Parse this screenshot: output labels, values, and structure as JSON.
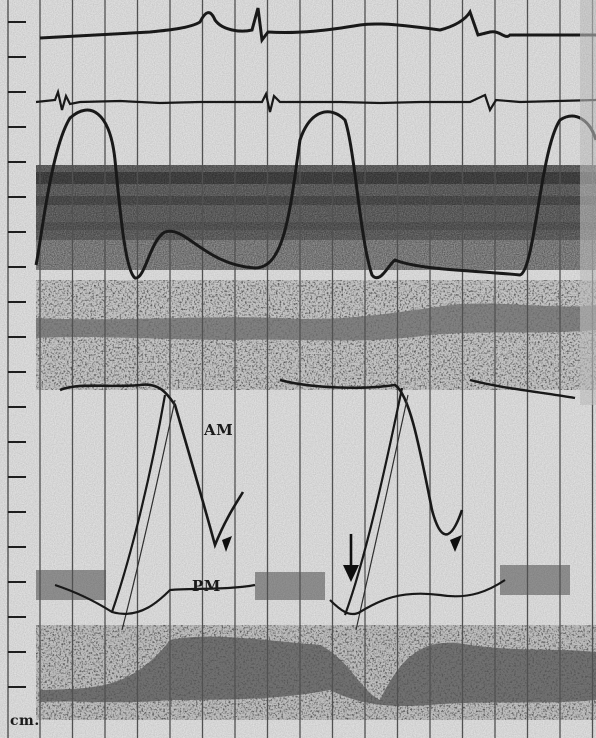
{
  "labels": {
    "anterior_leaflet": "AM",
    "posterior_leaflet": "PM",
    "scale_unit": "cm."
  },
  "colors": {
    "paper": "#ececec",
    "trace": "#1c1c1c",
    "gridline": "#5a5a5a",
    "band": "#6e6e6e"
  },
  "icons": {
    "arrow": "down-arrow-icon"
  }
}
